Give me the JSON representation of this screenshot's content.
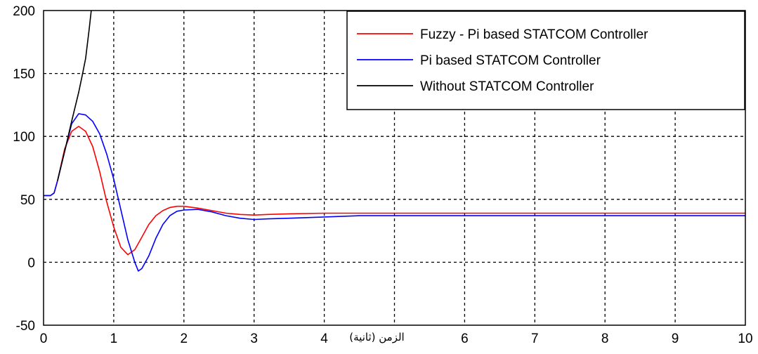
{
  "chart_data": {
    "type": "line",
    "xlabel": "الزمن (ثانية)",
    "ylabel": "",
    "title": "",
    "xlim": [
      0,
      10
    ],
    "ylim": [
      -50,
      200
    ],
    "xticks": [
      "0",
      "1",
      "2",
      "3",
      "4",
      "5",
      "6",
      "7",
      "8",
      "9",
      "10"
    ],
    "yticks": [
      "-50",
      "0",
      "50",
      "100",
      "150",
      "200"
    ],
    "grid": true,
    "legend_position": "top-right",
    "series": [
      {
        "name": "Fuzzy - Pi based STATCOM Controller",
        "color": "#ff0000",
        "points": [
          [
            0,
            53
          ],
          [
            0.1,
            53
          ],
          [
            0.15,
            55
          ],
          [
            0.2,
            65
          ],
          [
            0.3,
            90
          ],
          [
            0.4,
            104
          ],
          [
            0.5,
            108
          ],
          [
            0.6,
            104
          ],
          [
            0.7,
            92
          ],
          [
            0.8,
            72
          ],
          [
            0.9,
            48
          ],
          [
            1.0,
            28
          ],
          [
            1.1,
            12
          ],
          [
            1.2,
            6
          ],
          [
            1.3,
            10
          ],
          [
            1.4,
            20
          ],
          [
            1.5,
            30
          ],
          [
            1.6,
            37
          ],
          [
            1.7,
            41
          ],
          [
            1.8,
            43.5
          ],
          [
            1.9,
            44.5
          ],
          [
            2.0,
            44.5
          ],
          [
            2.2,
            43
          ],
          [
            2.4,
            41
          ],
          [
            2.6,
            39
          ],
          [
            2.8,
            38
          ],
          [
            3.0,
            37.5
          ],
          [
            3.2,
            38
          ],
          [
            3.5,
            38.5
          ],
          [
            4.0,
            39
          ],
          [
            5.0,
            39
          ],
          [
            6.0,
            39
          ],
          [
            7.0,
            39
          ],
          [
            8.0,
            39
          ],
          [
            9.0,
            39
          ],
          [
            10.0,
            39
          ]
        ]
      },
      {
        "name": "Pi based STATCOM Controller",
        "color": "#0000ff",
        "points": [
          [
            0,
            53
          ],
          [
            0.1,
            53
          ],
          [
            0.15,
            55
          ],
          [
            0.2,
            65
          ],
          [
            0.3,
            88
          ],
          [
            0.4,
            110
          ],
          [
            0.5,
            118
          ],
          [
            0.6,
            117
          ],
          [
            0.7,
            112
          ],
          [
            0.8,
            102
          ],
          [
            0.9,
            86
          ],
          [
            1.0,
            66
          ],
          [
            1.1,
            42
          ],
          [
            1.2,
            18
          ],
          [
            1.3,
            0
          ],
          [
            1.35,
            -7
          ],
          [
            1.4,
            -5
          ],
          [
            1.5,
            5
          ],
          [
            1.6,
            19
          ],
          [
            1.7,
            30
          ],
          [
            1.8,
            37
          ],
          [
            1.9,
            40.5
          ],
          [
            2.0,
            41.5
          ],
          [
            2.2,
            42
          ],
          [
            2.4,
            40
          ],
          [
            2.6,
            37
          ],
          [
            2.8,
            35
          ],
          [
            3.0,
            34
          ],
          [
            3.2,
            34.5
          ],
          [
            3.5,
            35
          ],
          [
            4.0,
            36
          ],
          [
            4.5,
            37
          ],
          [
            5.0,
            37
          ],
          [
            6.0,
            37
          ],
          [
            7.0,
            37
          ],
          [
            8.0,
            37
          ],
          [
            9.0,
            37
          ],
          [
            10.0,
            37
          ]
        ]
      },
      {
        "name": "Without STATCOM Controller",
        "color": "#000000",
        "points": [
          [
            0.2,
            65
          ],
          [
            0.3,
            88
          ],
          [
            0.4,
            112
          ],
          [
            0.5,
            135
          ],
          [
            0.55,
            148
          ],
          [
            0.6,
            162
          ],
          [
            0.65,
            185
          ],
          [
            0.68,
            200
          ]
        ]
      }
    ]
  }
}
